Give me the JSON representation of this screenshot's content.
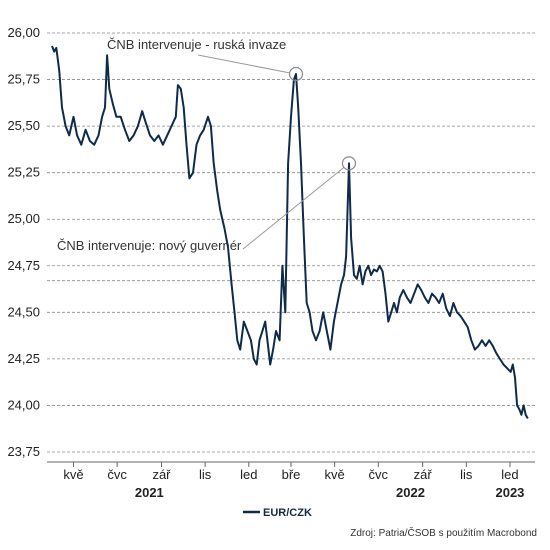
{
  "chart_data": {
    "type": "line",
    "series": [
      {
        "name": "EUR/CZK",
        "color": "#0f2a4a",
        "points": [
          [
            "2021-04-01",
            25.93
          ],
          [
            "2021-04-04",
            25.9
          ],
          [
            "2021-04-07",
            25.92
          ],
          [
            "2021-04-11",
            25.8
          ],
          [
            "2021-04-15",
            25.6
          ],
          [
            "2021-04-20",
            25.5
          ],
          [
            "2021-04-25",
            25.45
          ],
          [
            "2021-05-01",
            25.55
          ],
          [
            "2021-05-06",
            25.45
          ],
          [
            "2021-05-12",
            25.4
          ],
          [
            "2021-05-18",
            25.48
          ],
          [
            "2021-05-24",
            25.42
          ],
          [
            "2021-05-30",
            25.4
          ],
          [
            "2021-06-05",
            25.45
          ],
          [
            "2021-06-10",
            25.55
          ],
          [
            "2021-06-14",
            25.6
          ],
          [
            "2021-06-17",
            25.88
          ],
          [
            "2021-06-20",
            25.7
          ],
          [
            "2021-06-25",
            25.62
          ],
          [
            "2021-06-30",
            25.55
          ],
          [
            "2021-07-06",
            25.55
          ],
          [
            "2021-07-12",
            25.48
          ],
          [
            "2021-07-18",
            25.42
          ],
          [
            "2021-07-24",
            25.45
          ],
          [
            "2021-07-30",
            25.5
          ],
          [
            "2021-08-05",
            25.58
          ],
          [
            "2021-08-10",
            25.52
          ],
          [
            "2021-08-16",
            25.45
          ],
          [
            "2021-08-22",
            25.42
          ],
          [
            "2021-08-28",
            25.45
          ],
          [
            "2021-09-03",
            25.4
          ],
          [
            "2021-09-09",
            25.45
          ],
          [
            "2021-09-15",
            25.5
          ],
          [
            "2021-09-21",
            25.55
          ],
          [
            "2021-09-24",
            25.72
          ],
          [
            "2021-09-28",
            25.7
          ],
          [
            "2021-10-02",
            25.6
          ],
          [
            "2021-10-06",
            25.4
          ],
          [
            "2021-10-10",
            25.22
          ],
          [
            "2021-10-15",
            25.25
          ],
          [
            "2021-10-20",
            25.4
          ],
          [
            "2021-10-25",
            25.45
          ],
          [
            "2021-10-30",
            25.48
          ],
          [
            "2021-11-05",
            25.55
          ],
          [
            "2021-11-09",
            25.5
          ],
          [
            "2021-11-13",
            25.3
          ],
          [
            "2021-11-18",
            25.15
          ],
          [
            "2021-11-22",
            25.05
          ],
          [
            "2021-11-28",
            24.95
          ],
          [
            "2021-12-03",
            24.85
          ],
          [
            "2021-12-08",
            24.65
          ],
          [
            "2021-12-12",
            24.5
          ],
          [
            "2021-12-16",
            24.35
          ],
          [
            "2021-12-20",
            24.3
          ],
          [
            "2021-12-25",
            24.45
          ],
          [
            "2021-12-30",
            24.4
          ],
          [
            "2022-01-04",
            24.35
          ],
          [
            "2022-01-08",
            24.25
          ],
          [
            "2022-01-12",
            24.22
          ],
          [
            "2022-01-16",
            24.35
          ],
          [
            "2022-01-20",
            24.4
          ],
          [
            "2022-01-24",
            24.45
          ],
          [
            "2022-01-27",
            24.35
          ],
          [
            "2022-01-31",
            24.22
          ],
          [
            "2022-02-04",
            24.3
          ],
          [
            "2022-02-08",
            24.4
          ],
          [
            "2022-02-13",
            24.35
          ],
          [
            "2022-02-17",
            24.75
          ],
          [
            "2022-02-21",
            24.5
          ],
          [
            "2022-02-25",
            25.3
          ],
          [
            "2022-03-01",
            25.55
          ],
          [
            "2022-03-05",
            25.75
          ],
          [
            "2022-03-08",
            25.78
          ],
          [
            "2022-03-11",
            25.6
          ],
          [
            "2022-03-15",
            25.3
          ],
          [
            "2022-03-19",
            24.9
          ],
          [
            "2022-03-23",
            24.55
          ],
          [
            "2022-03-27",
            24.5
          ],
          [
            "2022-03-31",
            24.4
          ],
          [
            "2022-04-05",
            24.35
          ],
          [
            "2022-04-10",
            24.4
          ],
          [
            "2022-04-15",
            24.5
          ],
          [
            "2022-04-20",
            24.4
          ],
          [
            "2022-04-25",
            24.3
          ],
          [
            "2022-04-30",
            24.45
          ],
          [
            "2022-05-05",
            24.55
          ],
          [
            "2022-05-10",
            24.65
          ],
          [
            "2022-05-14",
            24.7
          ],
          [
            "2022-05-17",
            24.8
          ],
          [
            "2022-05-21",
            25.3
          ],
          [
            "2022-05-24",
            24.9
          ],
          [
            "2022-05-28",
            24.7
          ],
          [
            "2022-06-01",
            24.68
          ],
          [
            "2022-06-05",
            24.75
          ],
          [
            "2022-06-09",
            24.65
          ],
          [
            "2022-06-13",
            24.72
          ],
          [
            "2022-06-17",
            24.75
          ],
          [
            "2022-06-21",
            24.7
          ],
          [
            "2022-06-25",
            24.73
          ],
          [
            "2022-06-29",
            24.72
          ],
          [
            "2022-07-03",
            24.75
          ],
          [
            "2022-07-07",
            24.72
          ],
          [
            "2022-07-11",
            24.6
          ],
          [
            "2022-07-15",
            24.45
          ],
          [
            "2022-07-19",
            24.5
          ],
          [
            "2022-07-23",
            24.55
          ],
          [
            "2022-07-27",
            24.5
          ],
          [
            "2022-07-31",
            24.58
          ],
          [
            "2022-08-05",
            24.62
          ],
          [
            "2022-08-10",
            24.58
          ],
          [
            "2022-08-15",
            24.55
          ],
          [
            "2022-08-20",
            24.6
          ],
          [
            "2022-08-25",
            24.65
          ],
          [
            "2022-08-30",
            24.62
          ],
          [
            "2022-09-04",
            24.58
          ],
          [
            "2022-09-09",
            24.55
          ],
          [
            "2022-09-14",
            24.6
          ],
          [
            "2022-09-19",
            24.58
          ],
          [
            "2022-09-24",
            24.55
          ],
          [
            "2022-09-29",
            24.6
          ],
          [
            "2022-10-04",
            24.52
          ],
          [
            "2022-10-09",
            24.48
          ],
          [
            "2022-10-14",
            24.55
          ],
          [
            "2022-10-19",
            24.5
          ],
          [
            "2022-10-24",
            24.48
          ],
          [
            "2022-10-29",
            24.45
          ],
          [
            "2022-11-03",
            24.42
          ],
          [
            "2022-11-08",
            24.35
          ],
          [
            "2022-11-13",
            24.3
          ],
          [
            "2022-11-18",
            24.32
          ],
          [
            "2022-11-23",
            24.35
          ],
          [
            "2022-11-28",
            24.32
          ],
          [
            "2022-12-03",
            24.35
          ],
          [
            "2022-12-08",
            24.32
          ],
          [
            "2022-12-13",
            24.28
          ],
          [
            "2022-12-18",
            24.25
          ],
          [
            "2022-12-23",
            24.22
          ],
          [
            "2022-12-28",
            24.2
          ],
          [
            "2023-01-02",
            24.18
          ],
          [
            "2023-01-05",
            24.22
          ],
          [
            "2023-01-08",
            24.15
          ],
          [
            "2023-01-11",
            24.0
          ],
          [
            "2023-01-14",
            23.98
          ],
          [
            "2023-01-17",
            23.95
          ],
          [
            "2023-01-20",
            24.0
          ],
          [
            "2023-01-23",
            23.95
          ],
          [
            "2023-01-26",
            23.93
          ]
        ]
      }
    ],
    "ylim": [
      23.75,
      26.0
    ],
    "yticks": [
      {
        "value": 26.0,
        "label": "26,00"
      },
      {
        "value": 25.75,
        "label": "25,75"
      },
      {
        "value": 25.5,
        "label": "25,50"
      },
      {
        "value": 25.25,
        "label": "25,25"
      },
      {
        "value": 25.0,
        "label": "25,00"
      },
      {
        "value": 24.75,
        "label": "24,75"
      },
      {
        "value": 24.5,
        "label": "24,50"
      },
      {
        "value": 24.25,
        "label": "24,25"
      },
      {
        "value": 24.0,
        "label": "24,00"
      },
      {
        "value": 23.75,
        "label": "23,75"
      }
    ],
    "xlim": [
      "2021-03-25",
      "2023-02-05"
    ],
    "xticks": [
      {
        "date": "2021-05-01",
        "label": "kvě"
      },
      {
        "date": "2021-07-01",
        "label": "čvc"
      },
      {
        "date": "2021-09-01",
        "label": "zář"
      },
      {
        "date": "2021-11-01",
        "label": "lis"
      },
      {
        "date": "2022-01-01",
        "label": "led"
      },
      {
        "date": "2022-03-01",
        "label": "bře"
      },
      {
        "date": "2022-05-01",
        "label": "kvě"
      },
      {
        "date": "2022-07-01",
        "label": "čvc"
      },
      {
        "date": "2022-09-01",
        "label": "zář"
      },
      {
        "date": "2022-11-01",
        "label": "lis"
      },
      {
        "date": "2023-01-01",
        "label": "led"
      }
    ],
    "years": [
      {
        "date": "2021-08-15",
        "label": "2021"
      },
      {
        "date": "2022-08-15",
        "label": "2022"
      },
      {
        "date": "2023-01-01",
        "label": "2023"
      }
    ],
    "reference_lines": [
      24.67
    ],
    "grid": "horizontal dashed",
    "annotations": [
      {
        "text": "ČNB intervenuje - ruská invaze",
        "date": "2022-03-08",
        "value": 25.78
      },
      {
        "text": "ČNB intervenuje: nový guvernér",
        "date": "2022-05-21",
        "value": 25.3
      }
    ],
    "legend": {
      "position": "bottom-center",
      "label": "EUR/CZK"
    },
    "source": "Zdroj: Patria/ČSOB s použitím Macrobond"
  }
}
